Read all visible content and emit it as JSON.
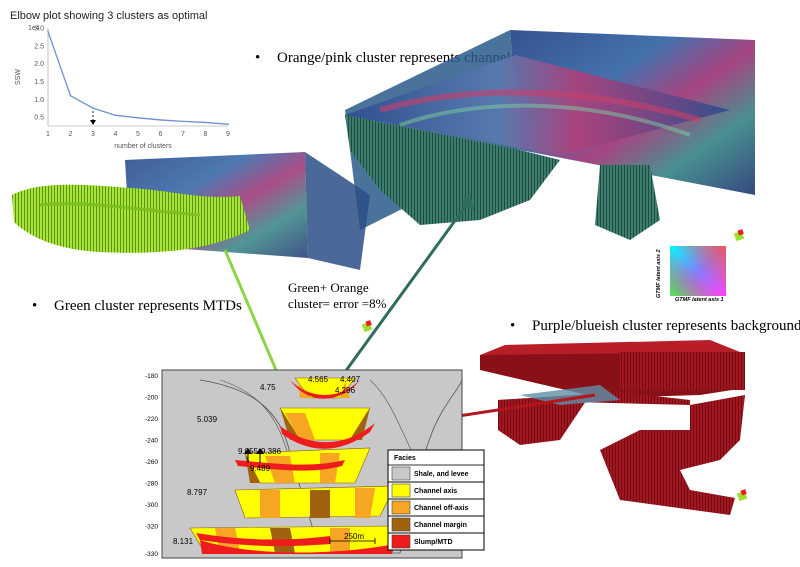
{
  "elbow": {
    "title": "Elbow plot showing 3 clusters as optimal",
    "ylabel": "SSW",
    "xlabel": "number of clusters",
    "exponent": "1e4"
  },
  "chart_data": {
    "type": "line",
    "title": "Elbow plot showing 3 clusters as optimal",
    "xlabel": "number of clusters",
    "ylabel": "SSW",
    "x": [
      1,
      2,
      3,
      4,
      5,
      6,
      7,
      8,
      9
    ],
    "series": [
      {
        "values": [
          2.9,
          1.1,
          0.75,
          0.55,
          0.48,
          0.42,
          0.38,
          0.35,
          0.3
        ]
      }
    ],
    "xticks": [
      "1",
      "2",
      "3",
      "4",
      "5",
      "6",
      "7",
      "8",
      "9"
    ],
    "yticks": [
      "0.5",
      "1.0",
      "1.5",
      "2.0",
      "2.5",
      "3.0"
    ],
    "xlim": [
      1,
      9
    ],
    "ylim": [
      0.25,
      3.0
    ],
    "grid": false,
    "annotation": "dashed arrow at 3 clusters",
    "line_color": "#6f8fd0"
  },
  "bullets": {
    "channels": "Orange/pink cluster represents channels",
    "mtds": "Green cluster represents MTDs",
    "background": "Purple/blueish cluster represents background"
  },
  "error_note": {
    "line1": "Green+ Orange",
    "line2": "cluster= error =8%"
  },
  "gtm": {
    "axis1": "GTMF latent axis 1",
    "axis2": "GTMF latent axis 2"
  },
  "cross_section": {
    "y_ticks": [
      "-180",
      "-200",
      "-220",
      "-240",
      "-260",
      "-280",
      "-300",
      "-320",
      "-330"
    ],
    "values": [
      "4.565",
      "4.407",
      "4.75",
      "4.296",
      "5.039",
      "9.055",
      "9.386",
      "9.489",
      "8.797",
      "8.131"
    ],
    "scale_bar": "250m",
    "legend": {
      "title": "Facies",
      "items": [
        {
          "label": "Shale, and levee",
          "color": "#c8c8c8"
        },
        {
          "label": "Channel axis",
          "color": "#ffff00"
        },
        {
          "label": "Channel off-axis",
          "color": "#f6a623"
        },
        {
          "label": "Channel margin",
          "color": "#a0620e"
        },
        {
          "label": "Slump/MTD",
          "color": "#ee1c1c"
        }
      ]
    }
  },
  "colors": {
    "green_cluster": "#9be02a",
    "teal_cluster": "#3a7a6c",
    "red_cluster": "#a3161f",
    "green_arrow": "#8cd44a",
    "teal_arrow": "#2f6d5a",
    "red_arrow": "#b3151c"
  }
}
